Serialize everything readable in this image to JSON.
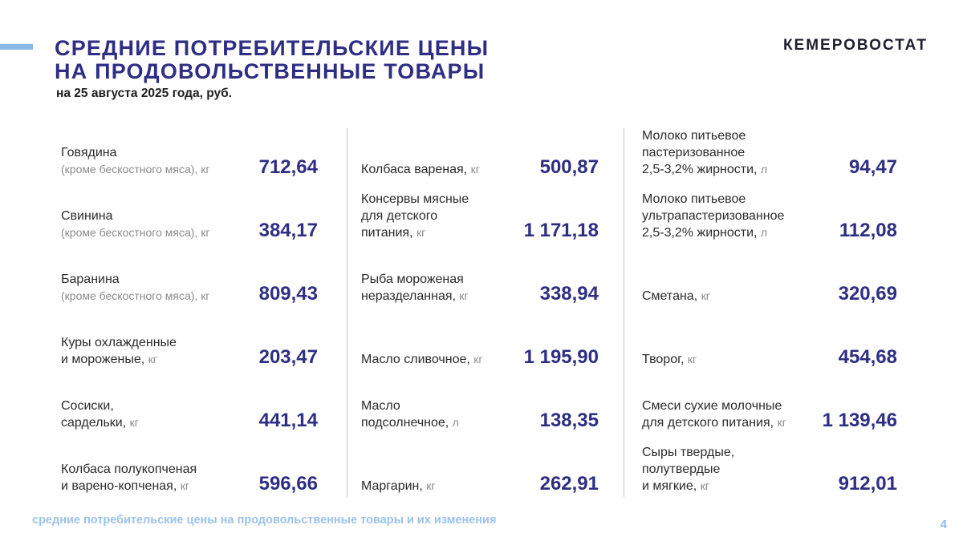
{
  "header": {
    "title_line1": "СРЕДНИЕ ПОТРЕБИТЕЛЬСКИЕ ЦЕНЫ",
    "title_line2": "НА ПРОДОВОЛЬСТВЕННЫЕ ТОВАРЫ",
    "subtitle": "на 25 августа 2025 года, руб.",
    "brand": "КЕМЕРОВОСТАТ"
  },
  "columns": [
    {
      "items": [
        {
          "lines": [
            "Говядина"
          ],
          "note": "(кроме бескостного мяса), кг",
          "unit": "",
          "price": "712,64"
        },
        {
          "lines": [
            "Свинина"
          ],
          "note": "(кроме бескостного мяса), кг",
          "unit": "",
          "price": "384,17"
        },
        {
          "lines": [
            "Баранина"
          ],
          "note": "(кроме бескостного мяса), кг",
          "unit": "",
          "price": "809,43"
        },
        {
          "lines": [
            "Куры охлажденные",
            "и мороженые,"
          ],
          "note": "",
          "unit": "кг",
          "price": "203,47"
        },
        {
          "lines": [
            "Сосиски,",
            "сардельки,"
          ],
          "note": "",
          "unit": "кг",
          "price": "441,14"
        },
        {
          "lines": [
            "Колбаса полукопченая",
            "и варено-копченая,"
          ],
          "note": "",
          "unit": "кг",
          "price": "596,66"
        }
      ]
    },
    {
      "items": [
        {
          "lines": [
            "Колбаса вареная,"
          ],
          "note": "",
          "unit": "кг",
          "price": "500,87"
        },
        {
          "lines": [
            "Консервы мясные",
            "для детского",
            "питания,"
          ],
          "note": "",
          "unit": "кг",
          "price": "1 171,18"
        },
        {
          "lines": [
            "Рыба мороженая",
            "неразделанная,"
          ],
          "note": "",
          "unit": "кг",
          "price": "338,94"
        },
        {
          "lines": [
            "Масло сливочное,"
          ],
          "note": "",
          "unit": "кг",
          "price": "1 195,90"
        },
        {
          "lines": [
            "Масло",
            "подсолнечное,"
          ],
          "note": "",
          "unit": "л",
          "price": "138,35"
        },
        {
          "lines": [
            "Маргарин,"
          ],
          "note": "",
          "unit": "кг",
          "price": "262,91"
        }
      ]
    },
    {
      "items": [
        {
          "lines": [
            "Молоко питьевое",
            "пастеризованное",
            "2,5-3,2% жирности,"
          ],
          "note": "",
          "unit": "л",
          "price": "94,47"
        },
        {
          "lines": [
            "Молоко питьевое",
            "ультрапастеризованное",
            "2,5-3,2% жирности,"
          ],
          "note": "",
          "unit": "л",
          "price": "112,08"
        },
        {
          "lines": [
            "Сметана,"
          ],
          "note": "",
          "unit": "кг",
          "price": "320,69"
        },
        {
          "lines": [
            "Творог,"
          ],
          "note": "",
          "unit": "кг",
          "price": "454,68"
        },
        {
          "lines": [
            "Смеси сухие молочные",
            "для детского питания,"
          ],
          "note": "",
          "unit": "кг",
          "price": "1 139,46"
        },
        {
          "lines": [
            "Сыры твердые,",
            "полутвердые",
            "и мягкие,"
          ],
          "note": "",
          "unit": "кг",
          "price": "912,01"
        }
      ]
    }
  ],
  "footer": {
    "caption": "средние потребительские цены на продовольственные товары и их изменения",
    "page_number": "4"
  },
  "colors": {
    "title": "#2e2e83",
    "accent": "#8ab8e6",
    "footer": "#9cc2ea",
    "muted": "#8a8a8a"
  }
}
